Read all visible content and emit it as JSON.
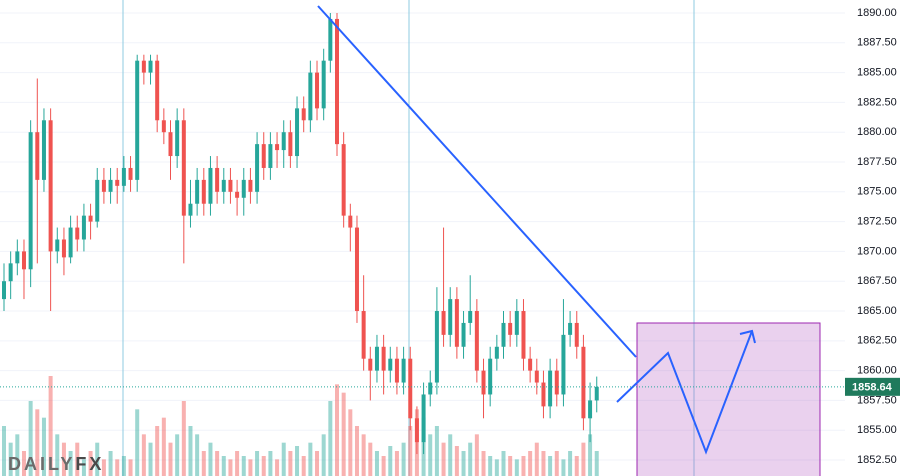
{
  "chart_data": {
    "type": "candlestick",
    "logo": {
      "part1": "DAILY",
      "part2": "FX"
    },
    "last_price": 1858.64,
    "up_color": "#26a69a",
    "down_color": "#ef5350",
    "ylim": [
      1851.16,
      1891.09
    ],
    "yticks": [
      {
        "value": 1852.5,
        "label": "1852.50"
      },
      {
        "value": 1855,
        "label": "1855.00"
      },
      {
        "value": 1857.5,
        "label": "1857.50"
      },
      {
        "value": 1860,
        "label": "1860.00"
      },
      {
        "value": 1862.5,
        "label": "1862.50"
      },
      {
        "value": 1865,
        "label": "1865.00"
      },
      {
        "value": 1867.5,
        "label": "1867.50"
      },
      {
        "value": 1870,
        "label": "1870.00"
      },
      {
        "value": 1872.5,
        "label": "1872.50"
      },
      {
        "value": 1875,
        "label": "1875.00"
      },
      {
        "value": 1877.5,
        "label": "1877.50"
      },
      {
        "value": 1880,
        "label": "1880.00"
      },
      {
        "value": 1882.5,
        "label": "1882.50"
      },
      {
        "value": 1885,
        "label": "1885.00"
      },
      {
        "value": 1887.5,
        "label": "1887.50"
      },
      {
        "value": 1890,
        "label": "1890.00"
      }
    ],
    "grid": true,
    "open": [
      1866,
      1867.5,
      1869,
      1870,
      1868.5,
      1880,
      1876,
      1881,
      1870,
      1871,
      1869.5,
      1872,
      1871,
      1873,
      1872.5,
      1876,
      1875,
      1876,
      1875.5,
      1877,
      1876,
      1886,
      1885,
      1886,
      1881,
      1880,
      1878,
      1881,
      1873,
      1874,
      1876,
      1874,
      1877,
      1875,
      1876,
      1875,
      1874.5,
      1876,
      1875,
      1879,
      1877,
      1879,
      1878.5,
      1880,
      1878,
      1882,
      1881,
      1885,
      1882,
      1886,
      1889.5,
      1879,
      1873,
      1872,
      1865,
      1861,
      1860,
      1862,
      1860,
      1861,
      1859,
      1861,
      1856,
      1854,
      1858,
      1859,
      1865,
      1863,
      1866,
      1862,
      1864,
      1865,
      1860,
      1858,
      1861,
      1862,
      1864,
      1863,
      1865,
      1861,
      1860,
      1859,
      1857,
      1860,
      1858,
      1863,
      1864,
      1862,
      1856,
      1857.5
    ],
    "high": [
      1869,
      1870,
      1871,
      1871,
      1881,
      1884.5,
      1882,
      1882,
      1872,
      1872,
      1873,
      1873,
      1874,
      1874,
      1877,
      1877,
      1877,
      1877,
      1878,
      1878,
      1886.5,
      1886.5,
      1886.5,
      1886.5,
      1882,
      1881,
      1882,
      1882,
      1876,
      1877,
      1877,
      1878,
      1878,
      1877,
      1877,
      1876,
      1877,
      1877,
      1880,
      1880,
      1880,
      1880,
      1881,
      1881,
      1883,
      1883,
      1886,
      1886,
      1887,
      1890,
      1890,
      1880,
      1874,
      1873,
      1868,
      1862,
      1863,
      1863,
      1862,
      1862,
      1862,
      1862,
      1857,
      1859,
      1860,
      1867,
      1872,
      1867,
      1867,
      1865,
      1868,
      1866,
      1861,
      1862,
      1863,
      1865,
      1865,
      1866,
      1866,
      1862,
      1861,
      1860,
      1861,
      1861,
      1866,
      1865,
      1865,
      1863,
      1859,
      1859.5
    ],
    "low": [
      1865,
      1866,
      1868,
      1866,
      1867,
      1869,
      1875,
      1865,
      1869,
      1868,
      1869,
      1870,
      1870,
      1871,
      1872,
      1874,
      1874,
      1874,
      1875,
      1875,
      1875,
      1884,
      1884,
      1880,
      1879,
      1876,
      1877,
      1869,
      1872,
      1873,
      1873,
      1873,
      1874,
      1874,
      1874,
      1873,
      1873,
      1874,
      1874,
      1876,
      1876,
      1877,
      1877,
      1877,
      1877,
      1880,
      1880,
      1881,
      1881,
      1885,
      1878,
      1872,
      1870,
      1864,
      1860,
      1857.5,
      1859,
      1858,
      1859,
      1858,
      1858,
      1855,
      1853,
      1853,
      1857,
      1858,
      1862,
      1862,
      1861,
      1861,
      1863,
      1859,
      1856,
      1857,
      1860,
      1861,
      1862,
      1862,
      1860,
      1859,
      1858,
      1856,
      1856,
      1857,
      1857,
      1862,
      1861,
      1855,
      1854,
      1856.5
    ],
    "close": [
      1867.5,
      1869,
      1870,
      1868.5,
      1880,
      1876,
      1881,
      1870,
      1871,
      1869.5,
      1872,
      1871,
      1873,
      1872.5,
      1876,
      1875,
      1876,
      1875.5,
      1877,
      1876,
      1886,
      1885,
      1886,
      1881,
      1880,
      1878,
      1881,
      1873,
      1874,
      1876,
      1874,
      1877,
      1875,
      1876,
      1875,
      1874.5,
      1876,
      1875,
      1879,
      1877,
      1879,
      1878.5,
      1880,
      1878,
      1882,
      1881,
      1885,
      1882,
      1886,
      1889.5,
      1879,
      1873,
      1872,
      1865,
      1861,
      1860,
      1862,
      1860,
      1861,
      1859,
      1861,
      1856,
      1854,
      1858,
      1859,
      1865,
      1863,
      1866,
      1862,
      1864,
      1865,
      1860,
      1858,
      1861,
      1862,
      1864,
      1863,
      1865,
      1861,
      1860,
      1859,
      1857,
      1860,
      1858,
      1863,
      1864,
      1862,
      1856,
      1857.5,
      1858.64
    ],
    "volume": [
      30,
      20,
      25,
      15,
      45,
      40,
      35,
      60,
      25,
      20,
      15,
      20,
      10,
      15,
      20,
      10,
      15,
      10,
      12,
      10,
      40,
      25,
      20,
      30,
      35,
      20,
      25,
      45,
      30,
      25,
      15,
      20,
      15,
      12,
      10,
      15,
      12,
      10,
      15,
      12,
      15,
      10,
      20,
      15,
      18,
      12,
      20,
      15,
      25,
      45,
      55,
      50,
      40,
      30,
      25,
      20,
      15,
      12,
      18,
      15,
      20,
      30,
      40,
      35,
      25,
      30,
      20,
      25,
      18,
      15,
      20,
      25,
      15,
      12,
      10,
      15,
      12,
      10,
      12,
      15,
      20,
      15,
      12,
      15,
      10,
      15,
      12,
      20,
      25,
      15
    ]
  }
}
